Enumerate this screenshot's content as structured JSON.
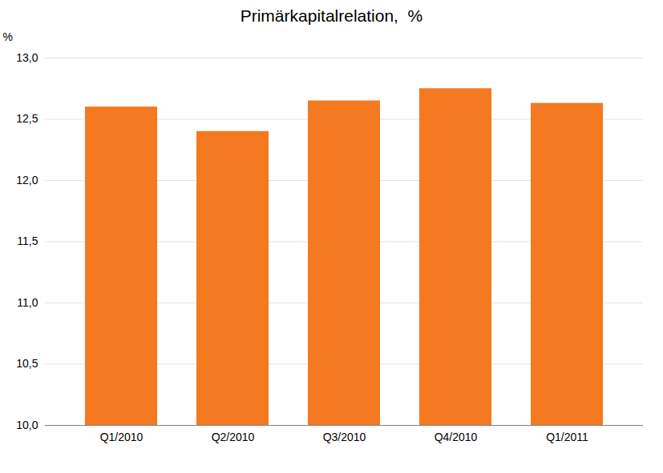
{
  "chart_data": {
    "type": "bar",
    "title": "Primärkapitalrelation,  %",
    "categories": [
      "Q1/2010",
      "Q2/2010",
      "Q3/2010",
      "Q4/2010",
      "Q1/2011"
    ],
    "values": [
      12.6,
      12.4,
      12.65,
      12.75,
      12.63
    ],
    "color": "#F47920",
    "ylabel": "%",
    "ylim": [
      10.0,
      13.0
    ],
    "yticks": [
      {
        "value": 10.0,
        "label": "10,0"
      },
      {
        "value": 10.5,
        "label": "10,5"
      },
      {
        "value": 11.0,
        "label": "11,0"
      },
      {
        "value": 11.5,
        "label": "11,5"
      },
      {
        "value": 12.0,
        "label": "12,0"
      },
      {
        "value": 12.5,
        "label": "12,5"
      },
      {
        "value": 13.0,
        "label": "13,0"
      }
    ],
    "grid": true
  }
}
